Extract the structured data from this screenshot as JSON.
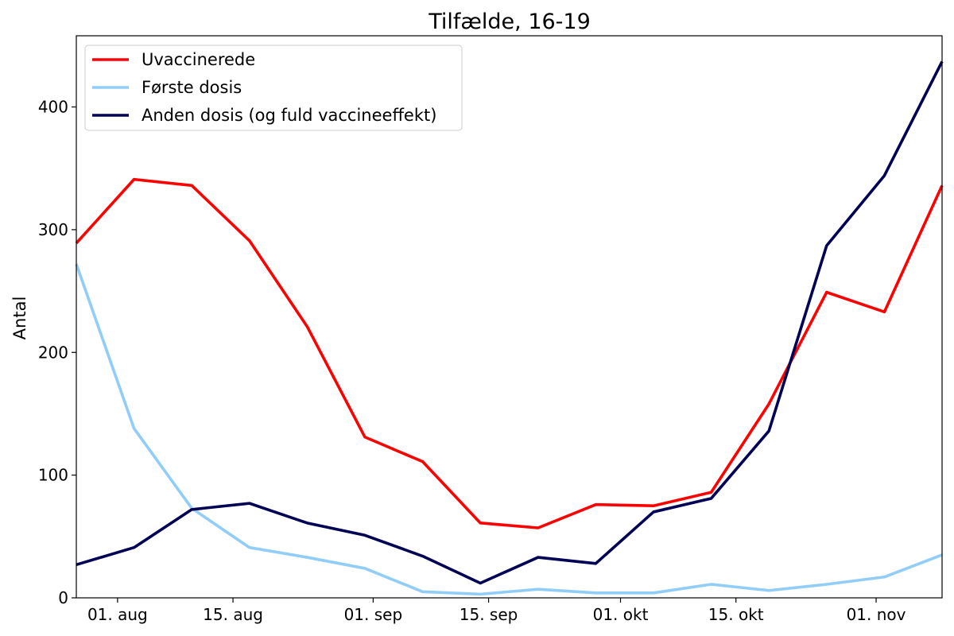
{
  "chart_data": {
    "type": "line",
    "title": "Tilfælde, 16-19",
    "xlabel": "",
    "ylabel": "Antal",
    "x": [
      "2021-07-27",
      "2021-08-03",
      "2021-08-10",
      "2021-08-17",
      "2021-08-24",
      "2021-08-31",
      "2021-09-07",
      "2021-09-14",
      "2021-09-21",
      "2021-09-28",
      "2021-10-05",
      "2021-10-12",
      "2021-10-19",
      "2021-10-26",
      "2021-11-02",
      "2021-11-09"
    ],
    "xlim": [
      "2021-07-27",
      "2021-11-09"
    ],
    "ylim": [
      0,
      458
    ],
    "x_ticks": [
      {
        "date": "2021-08-01",
        "label": "01. aug"
      },
      {
        "date": "2021-08-15",
        "label": "15. aug"
      },
      {
        "date": "2021-09-01",
        "label": "01. sep"
      },
      {
        "date": "2021-09-15",
        "label": "15. sep"
      },
      {
        "date": "2021-10-01",
        "label": "01. okt"
      },
      {
        "date": "2021-10-15",
        "label": "15. okt"
      },
      {
        "date": "2021-11-01",
        "label": "01. nov"
      }
    ],
    "y_ticks": [
      0,
      100,
      200,
      300,
      400
    ],
    "grid": false,
    "legend_position": "upper-left",
    "series": [
      {
        "name": "Uvaccinerede",
        "color": "#ff0000",
        "values": [
          289,
          341,
          336,
          291,
          221,
          131,
          111,
          61,
          57,
          76,
          75,
          86,
          158,
          249,
          233,
          336
        ]
      },
      {
        "name": "Første dosis",
        "color": "#90cdf8",
        "values": [
          272,
          138,
          73,
          41,
          33,
          24,
          5,
          3,
          7,
          4,
          4,
          11,
          6,
          11,
          17,
          35
        ]
      },
      {
        "name": "Anden dosis (og fuld vaccineeffekt)",
        "color": "#000055",
        "values": [
          27,
          41,
          72,
          77,
          61,
          51,
          34,
          12,
          33,
          28,
          70,
          81,
          136,
          287,
          344,
          437
        ]
      }
    ]
  }
}
